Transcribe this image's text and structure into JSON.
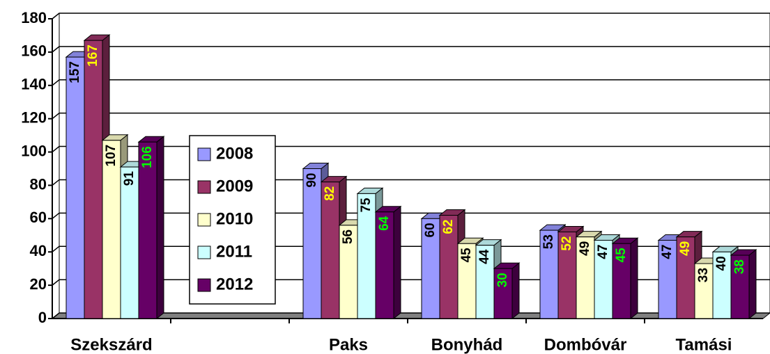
{
  "chart_data": {
    "type": "bar3d",
    "categories": [
      "Szekszárd",
      null,
      "Paks",
      "Bonyhád",
      "Dombóvár",
      "Tamási"
    ],
    "series": [
      {
        "name": "2008",
        "color": "#9999ff",
        "label_color": "#000000",
        "values": [
          157,
          null,
          90,
          60,
          53,
          47
        ]
      },
      {
        "name": "2009",
        "color": "#993366",
        "label_color": "#ffff00",
        "values": [
          167,
          null,
          82,
          62,
          52,
          49
        ]
      },
      {
        "name": "2010",
        "color": "#ffffcc",
        "label_color": "#000000",
        "values": [
          107,
          null,
          56,
          45,
          49,
          33
        ]
      },
      {
        "name": "2011",
        "color": "#ccffff",
        "label_color": "#000000",
        "values": [
          91,
          null,
          75,
          44,
          47,
          40
        ]
      },
      {
        "name": "2012",
        "color": "#660066",
        "label_color": "#00ff00",
        "values": [
          106,
          null,
          64,
          30,
          45,
          38
        ]
      }
    ],
    "ylim": [
      0,
      180
    ],
    "yticks": [
      0,
      20,
      40,
      60,
      80,
      100,
      120,
      140,
      160,
      180
    ],
    "grid": true
  }
}
